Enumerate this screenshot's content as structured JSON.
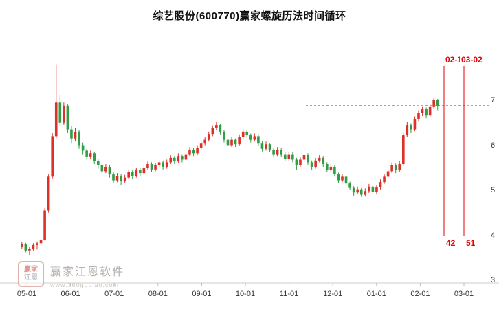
{
  "title": "综艺股份(600770)赢家螺旋历法时间循环",
  "annotations": {
    "vline1": {
      "date": "02-17",
      "count": "42"
    },
    "vline2": {
      "date": "03-02",
      "count": "51"
    },
    "hline_price": 6.88,
    "line_color": "#e60000",
    "hline_color": "#2f9e44"
  },
  "watermark": {
    "logo_line1": "赢家",
    "logo_line2": "江恩",
    "brand": "赢家江恩软件",
    "url": "www.360gupiao.com"
  },
  "chart_data": {
    "type": "candlestick",
    "title": "综艺股份(600770)赢家螺旋历法时间循环",
    "xlabel": "",
    "ylabel": "",
    "x_axis_labels": [
      "05-01",
      "06-01",
      "07-01",
      "08-01",
      "09-01",
      "10-01",
      "11-01",
      "12-01",
      "01-01",
      "02-01",
      "03-01"
    ],
    "y_ticks": [
      7,
      6,
      5,
      4,
      3
    ],
    "ylim": [
      3,
      7.9
    ],
    "y_axis_side": "right",
    "grid": false,
    "up_color": "#dd3028",
    "down_color": "#2f9e44",
    "axis_color": "#cccccc",
    "last_close": 6.88,
    "candles": [
      [
        3.75,
        3.84,
        3.7,
        3.8
      ],
      [
        3.8,
        3.83,
        3.62,
        3.66
      ],
      [
        3.66,
        3.74,
        3.55,
        3.7
      ],
      [
        3.7,
        3.82,
        3.66,
        3.78
      ],
      [
        3.78,
        3.86,
        3.68,
        3.82
      ],
      [
        3.82,
        3.95,
        3.78,
        3.9
      ],
      [
        3.9,
        4.6,
        3.88,
        4.55
      ],
      [
        4.55,
        5.35,
        4.5,
        5.3
      ],
      [
        5.3,
        6.28,
        5.26,
        6.2
      ],
      [
        6.2,
        7.8,
        6.15,
        6.95
      ],
      [
        6.95,
        7.12,
        6.42,
        6.5
      ],
      [
        6.5,
        6.95,
        6.45,
        6.88
      ],
      [
        6.88,
        6.92,
        6.28,
        6.35
      ],
      [
        6.35,
        6.42,
        6.05,
        6.15
      ],
      [
        6.15,
        6.38,
        6.1,
        6.3
      ],
      [
        6.3,
        6.33,
        5.92,
        6.0
      ],
      [
        6.0,
        6.06,
        5.8,
        5.88
      ],
      [
        5.88,
        5.92,
        5.68,
        5.75
      ],
      [
        5.75,
        5.88,
        5.7,
        5.82
      ],
      [
        5.82,
        5.85,
        5.58,
        5.65
      ],
      [
        5.65,
        5.7,
        5.48,
        5.55
      ],
      [
        5.55,
        5.6,
        5.36,
        5.42
      ],
      [
        5.42,
        5.58,
        5.38,
        5.52
      ],
      [
        5.52,
        5.55,
        5.28,
        5.35
      ],
      [
        5.35,
        5.4,
        5.15,
        5.22
      ],
      [
        5.22,
        5.38,
        5.18,
        5.32
      ],
      [
        5.32,
        5.36,
        5.12,
        5.2
      ],
      [
        5.2,
        5.34,
        5.16,
        5.28
      ],
      [
        5.28,
        5.46,
        5.24,
        5.4
      ],
      [
        5.4,
        5.44,
        5.26,
        5.32
      ],
      [
        5.32,
        5.5,
        5.28,
        5.45
      ],
      [
        5.45,
        5.49,
        5.32,
        5.38
      ],
      [
        5.38,
        5.55,
        5.34,
        5.5
      ],
      [
        5.5,
        5.64,
        5.46,
        5.58
      ],
      [
        5.58,
        5.62,
        5.4,
        5.46
      ],
      [
        5.46,
        5.6,
        5.42,
        5.55
      ],
      [
        5.55,
        5.68,
        5.5,
        5.62
      ],
      [
        5.62,
        5.66,
        5.46,
        5.52
      ],
      [
        5.52,
        5.68,
        5.48,
        5.62
      ],
      [
        5.62,
        5.78,
        5.58,
        5.72
      ],
      [
        5.72,
        5.76,
        5.58,
        5.64
      ],
      [
        5.64,
        5.82,
        5.6,
        5.76
      ],
      [
        5.76,
        5.8,
        5.62,
        5.68
      ],
      [
        5.68,
        5.86,
        5.64,
        5.8
      ],
      [
        5.8,
        5.96,
        5.76,
        5.9
      ],
      [
        5.9,
        5.94,
        5.76,
        5.82
      ],
      [
        5.82,
        6.0,
        5.78,
        5.94
      ],
      [
        5.94,
        6.1,
        5.9,
        6.05
      ],
      [
        6.05,
        6.18,
        6.0,
        6.12
      ],
      [
        6.12,
        6.3,
        6.08,
        6.25
      ],
      [
        6.25,
        6.44,
        6.2,
        6.38
      ],
      [
        6.38,
        6.52,
        6.33,
        6.45
      ],
      [
        6.45,
        6.48,
        6.24,
        6.3
      ],
      [
        6.3,
        6.34,
        6.06,
        6.12
      ],
      [
        6.12,
        6.16,
        5.94,
        6.0
      ],
      [
        6.0,
        6.18,
        5.96,
        6.12
      ],
      [
        6.12,
        6.15,
        5.96,
        6.02
      ],
      [
        6.02,
        6.24,
        5.98,
        6.18
      ],
      [
        6.18,
        6.36,
        6.14,
        6.3
      ],
      [
        6.3,
        6.34,
        6.16,
        6.22
      ],
      [
        6.22,
        6.26,
        6.06,
        6.12
      ],
      [
        6.12,
        6.26,
        6.08,
        6.2
      ],
      [
        6.2,
        6.24,
        5.99,
        6.05
      ],
      [
        6.05,
        6.09,
        5.86,
        5.92
      ],
      [
        5.92,
        6.08,
        5.88,
        6.02
      ],
      [
        6.02,
        6.05,
        5.84,
        5.9
      ],
      [
        5.9,
        5.94,
        5.74,
        5.8
      ],
      [
        5.8,
        5.96,
        5.76,
        5.9
      ],
      [
        5.9,
        5.93,
        5.74,
        5.8
      ],
      [
        5.8,
        5.84,
        5.64,
        5.7
      ],
      [
        5.7,
        5.86,
        5.66,
        5.8
      ],
      [
        5.8,
        5.84,
        5.62,
        5.68
      ],
      [
        5.68,
        5.72,
        5.45,
        5.56
      ],
      [
        5.56,
        5.74,
        5.52,
        5.68
      ],
      [
        5.68,
        5.84,
        5.64,
        5.78
      ],
      [
        5.78,
        5.82,
        5.56,
        5.62
      ],
      [
        5.62,
        5.66,
        5.46,
        5.52
      ],
      [
        5.52,
        5.72,
        5.48,
        5.66
      ],
      [
        5.66,
        5.78,
        5.62,
        5.72
      ],
      [
        5.72,
        5.76,
        5.52,
        5.58
      ],
      [
        5.58,
        5.62,
        5.4,
        5.45
      ],
      [
        5.45,
        5.58,
        5.41,
        5.52
      ],
      [
        5.52,
        5.56,
        5.3,
        5.35
      ],
      [
        5.35,
        5.39,
        5.16,
        5.22
      ],
      [
        5.22,
        5.36,
        5.18,
        5.3
      ],
      [
        5.3,
        5.33,
        5.1,
        5.15
      ],
      [
        5.15,
        5.19,
        5.0,
        5.05
      ],
      [
        5.05,
        5.09,
        4.88,
        4.95
      ],
      [
        4.95,
        5.08,
        4.91,
        5.02
      ],
      [
        5.02,
        5.05,
        4.85,
        4.9
      ],
      [
        4.9,
        5.04,
        4.86,
        4.98
      ],
      [
        4.98,
        5.14,
        4.94,
        5.08
      ],
      [
        5.08,
        5.12,
        4.92,
        4.96
      ],
      [
        4.96,
        5.12,
        4.92,
        5.06
      ],
      [
        5.06,
        5.24,
        5.02,
        5.18
      ],
      [
        5.18,
        5.36,
        5.14,
        5.3
      ],
      [
        5.3,
        5.48,
        5.26,
        5.42
      ],
      [
        5.42,
        5.62,
        5.38,
        5.55
      ],
      [
        5.55,
        5.59,
        5.38,
        5.45
      ],
      [
        5.45,
        5.64,
        5.41,
        5.58
      ],
      [
        5.58,
        6.28,
        5.54,
        6.22
      ],
      [
        6.22,
        6.52,
        6.18,
        6.45
      ],
      [
        6.45,
        6.49,
        6.28,
        6.35
      ],
      [
        6.35,
        6.64,
        6.31,
        6.58
      ],
      [
        6.58,
        6.78,
        6.54,
        6.72
      ],
      [
        6.72,
        6.85,
        6.65,
        6.8
      ],
      [
        6.8,
        6.84,
        6.6,
        6.66
      ],
      [
        6.66,
        6.91,
        6.62,
        6.85
      ],
      [
        6.85,
        7.06,
        6.8,
        7.0
      ],
      [
        7.0,
        7.03,
        6.78,
        6.88
      ]
    ]
  }
}
